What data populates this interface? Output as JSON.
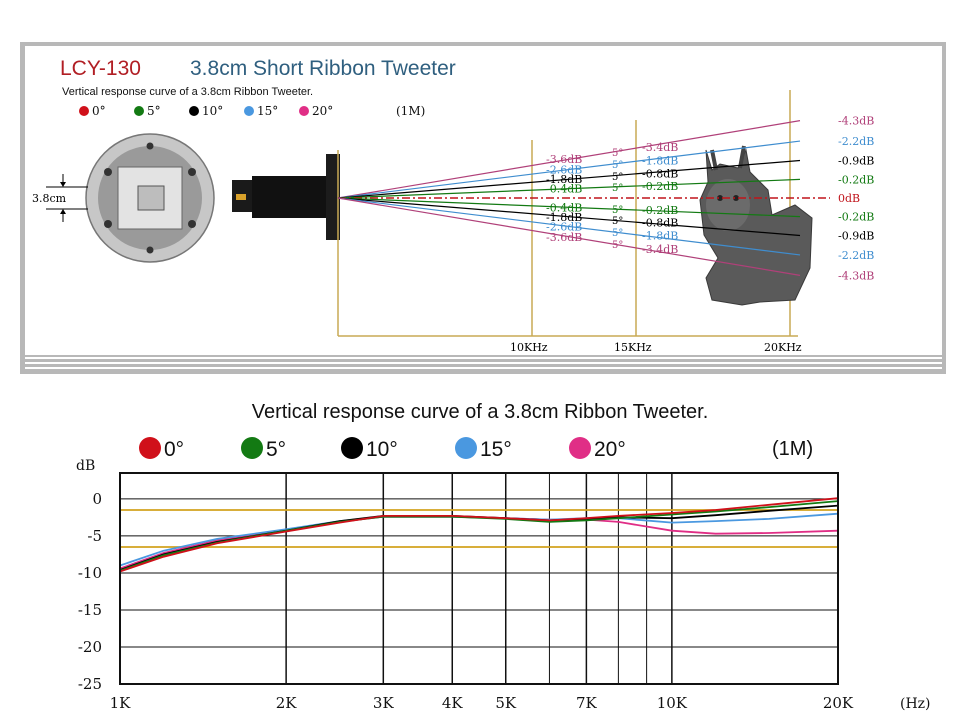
{
  "top_panel": {
    "model": "LCY-130",
    "title": "3.8cm Short Ribbon Tweeter",
    "subtitle": "Vertical response curve of a 3.8cm Ribbon Tweeter.",
    "legend_note": "(1M)",
    "dimension_label": "3.8cm",
    "freq_labels": [
      "10KHz",
      "15KHz",
      "20KHz"
    ],
    "angle_label": "5°",
    "rays": [
      {
        "angle": 20,
        "color": "#b04079",
        "end_label": "-4.3dB",
        "mid_label": "-3.4dB",
        "near_label": "-3.6dB"
      },
      {
        "angle": 15,
        "color": "#3f8dcf",
        "end_label": "-2.2dB",
        "mid_label": "-1.8dB",
        "near_label": "-2.6dB"
      },
      {
        "angle": 10,
        "color": "#000000",
        "end_label": "-0.9dB",
        "mid_label": "-0.8dB",
        "near_label": "-1.8dB"
      },
      {
        "angle": 5,
        "color": "#137a13",
        "end_label": "-0.2dB",
        "mid_label": "-0.2dB",
        "near_label": "-0.4dB"
      },
      {
        "angle": 0,
        "color": "#c0141b",
        "end_label": "0dB",
        "mid_label": "",
        "near_label": ""
      },
      {
        "angle": -5,
        "color": "#137a13",
        "end_label": "-0.2dB",
        "mid_label": "-0.2dB",
        "near_label": "-0.4dB"
      },
      {
        "angle": -10,
        "color": "#000000",
        "end_label": "-0.9dB",
        "mid_label": "-0.8dB",
        "near_label": "-1.8dB"
      },
      {
        "angle": -15,
        "color": "#3f8dcf",
        "end_label": "-2.2dB",
        "mid_label": "-1.8dB",
        "near_label": "-2.6dB"
      },
      {
        "angle": -20,
        "color": "#b04079",
        "end_label": "-4.3dB",
        "mid_label": "-3.4dB",
        "near_label": "-3.6dB"
      }
    ]
  },
  "legend": [
    {
      "label": "0°",
      "color": "#d0101a"
    },
    {
      "label": "5°",
      "color": "#137a13"
    },
    {
      "label": "10°",
      "color": "#000000"
    },
    {
      "label": "15°",
      "color": "#4a98e0"
    },
    {
      "label": "20°",
      "color": "#e02e86"
    }
  ],
  "chart_data": {
    "type": "line",
    "title": "Vertical response curve of a 3.8cm Ribbon Tweeter.",
    "legend_note": "(1M)",
    "ylabel": "dB",
    "xlabel": "(Hz)",
    "x_scale": "log",
    "xlim": [
      1000,
      20000
    ],
    "ylim": [
      -25,
      0
    ],
    "x_ticks": [
      1000,
      2000,
      3000,
      4000,
      5000,
      7000,
      10000,
      20000
    ],
    "x_tick_labels": [
      "1K",
      "2K",
      "3K",
      "4K",
      "5K",
      "7K",
      "10K",
      "20K"
    ],
    "y_ticks": [
      0,
      -5,
      -10,
      -15,
      -20,
      -25
    ],
    "y_tick_labels": [
      "0",
      "-5",
      "-10",
      "-15",
      "-20",
      "-25"
    ],
    "reference_lines_db": [
      -1.5,
      -6.5
    ],
    "x": [
      1000,
      1200,
      1500,
      2000,
      2500,
      3000,
      4000,
      5000,
      6000,
      7000,
      8000,
      10000,
      12000,
      15000,
      20000
    ],
    "series": [
      {
        "name": "0°",
        "color": "#d0101a",
        "values": [
          -9.8,
          -7.8,
          -6.0,
          -4.4,
          -3.2,
          -2.3,
          -2.3,
          -2.6,
          -2.9,
          -2.6,
          -2.3,
          -1.9,
          -1.5,
          -0.8,
          0.1
        ]
      },
      {
        "name": "5°",
        "color": "#137a13",
        "values": [
          -9.7,
          -7.6,
          -5.9,
          -4.3,
          -3.1,
          -2.4,
          -2.4,
          -2.7,
          -3.1,
          -2.9,
          -2.6,
          -2.1,
          -1.7,
          -1.1,
          -0.3
        ]
      },
      {
        "name": "10°",
        "color": "#000000",
        "values": [
          -9.6,
          -7.5,
          -5.8,
          -4.3,
          -3.0,
          -2.3,
          -2.3,
          -2.6,
          -2.9,
          -2.7,
          -2.5,
          -2.6,
          -2.2,
          -1.6,
          -0.9
        ]
      },
      {
        "name": "15°",
        "color": "#4a98e0",
        "values": [
          -9.0,
          -7.0,
          -5.4,
          -4.1,
          -3.0,
          -2.4,
          -2.4,
          -2.6,
          -2.8,
          -2.6,
          -2.6,
          -3.2,
          -3.0,
          -2.7,
          -2.0
        ]
      },
      {
        "name": "20°",
        "color": "#e02e86",
        "values": [
          -9.4,
          -7.3,
          -5.6,
          -4.2,
          -3.1,
          -2.4,
          -2.4,
          -2.6,
          -2.8,
          -2.8,
          -3.1,
          -4.3,
          -4.7,
          -4.6,
          -4.3
        ]
      }
    ]
  }
}
